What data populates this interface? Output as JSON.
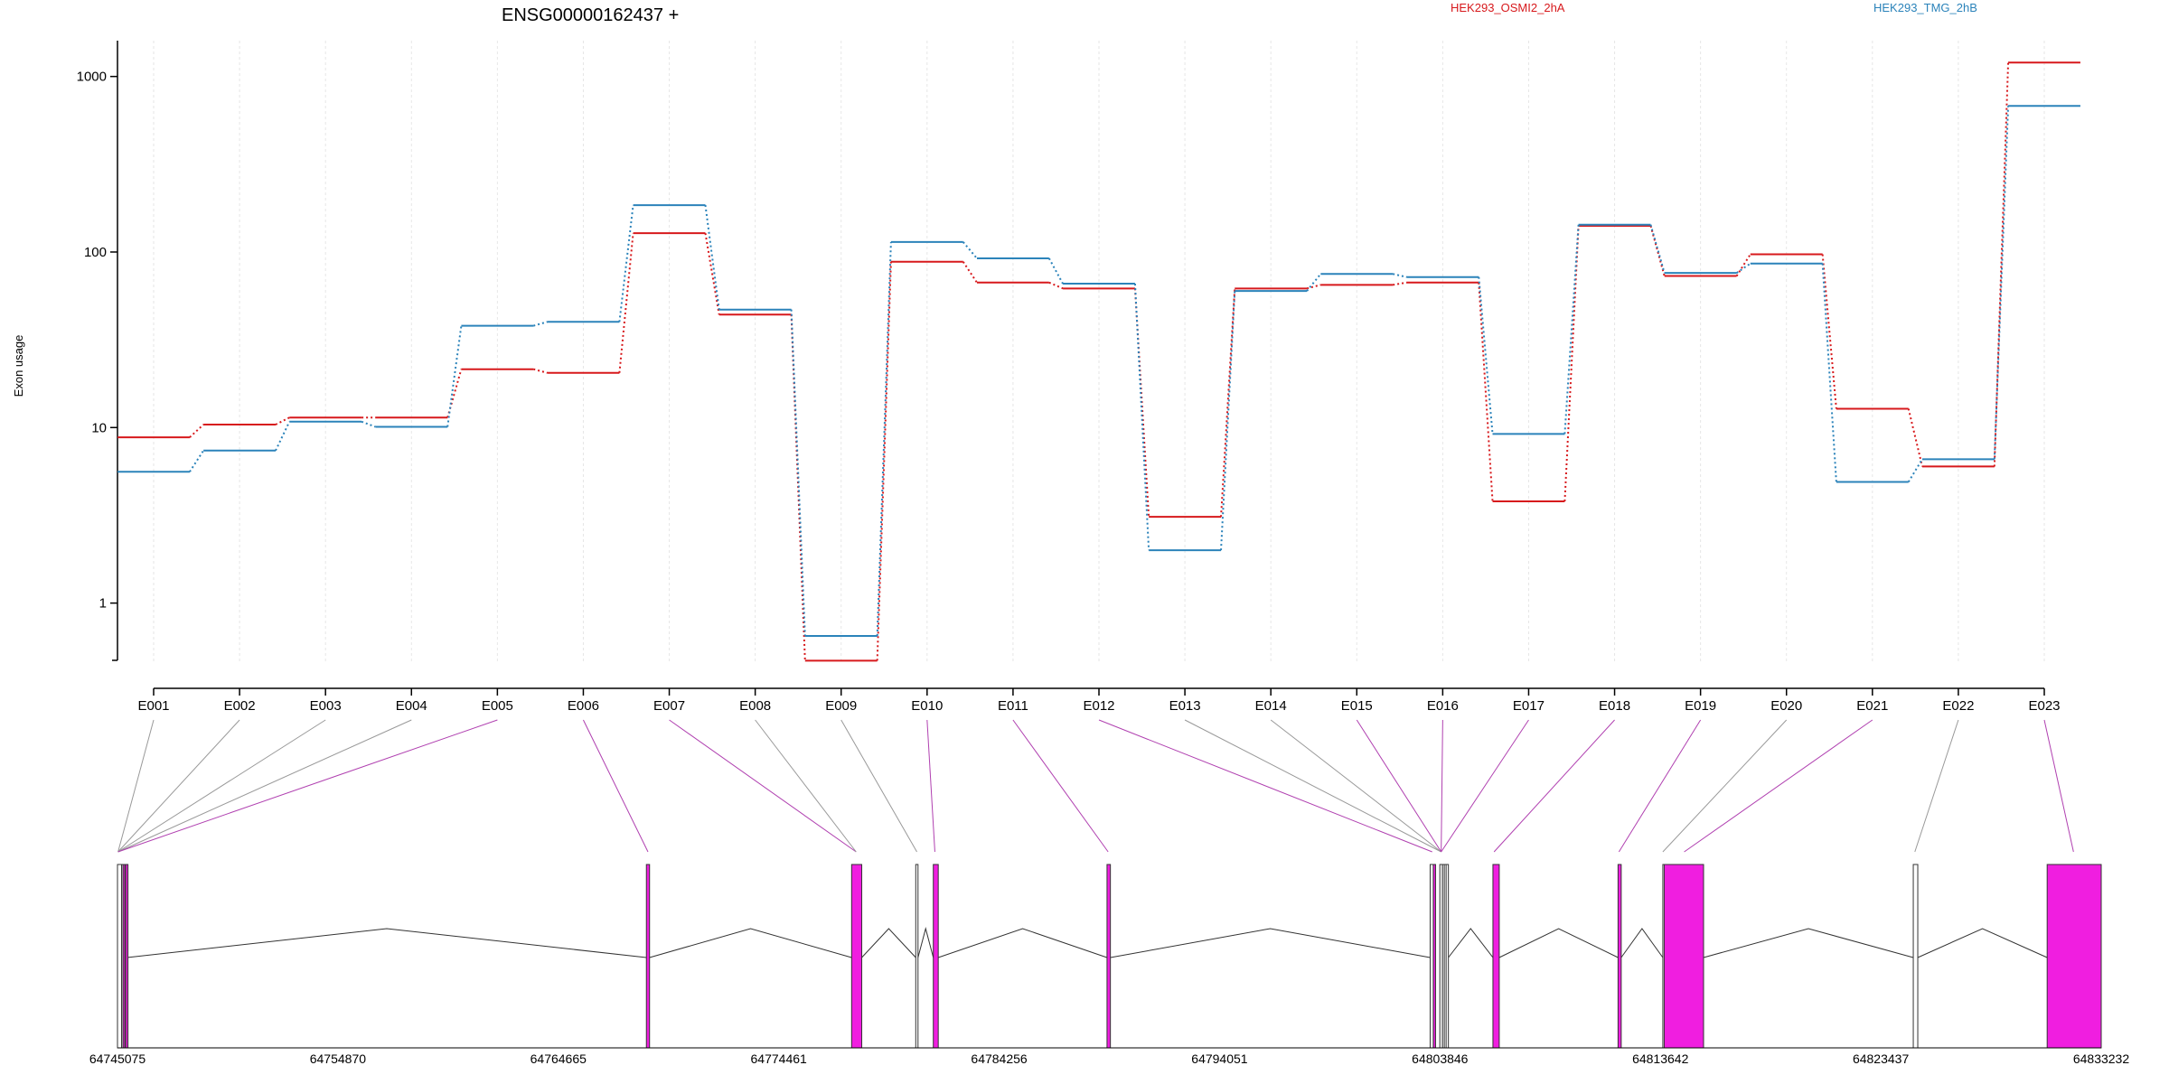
{
  "chart_data": {
    "type": "line",
    "title": "ENSG00000162437 +",
    "ylabel": "Exon usage",
    "xlabel": "",
    "y_scale": "log",
    "ylim": [
      0.45,
      1600
    ],
    "y_ticks": [
      1,
      10,
      100,
      1000
    ],
    "y_tick_labels": [
      "1",
      "10",
      "100",
      "1000"
    ],
    "categories": [
      "E001",
      "E002",
      "E003",
      "E004",
      "E005",
      "E006",
      "E007",
      "E008",
      "E009",
      "E010",
      "E011",
      "E012",
      "E013",
      "E014",
      "E015",
      "E016",
      "E017",
      "E018",
      "E019",
      "E020",
      "E021",
      "E022",
      "E023"
    ],
    "series": [
      {
        "name": "HEK293_OSMI2_2hA",
        "color": "#d7191c",
        "values": [
          8.8,
          10.4,
          11.4,
          11.4,
          21.5,
          20.5,
          128,
          44,
          0.47,
          88,
          67,
          62,
          3.1,
          62,
          65,
          67,
          3.8,
          141,
          73,
          97,
          12.8,
          6.0,
          1200
        ]
      },
      {
        "name": "HEK293_TMG_2hB",
        "color": "#2b83ba",
        "values": [
          5.6,
          7.4,
          10.8,
          10.1,
          38,
          40,
          185,
          47,
          0.65,
          114,
          92,
          66,
          2.0,
          60,
          75,
          72,
          9.2,
          143,
          76,
          86,
          4.9,
          6.6,
          680
        ]
      }
    ],
    "gene_model": {
      "x_tick_labels": [
        "64745075",
        "64754870",
        "64764665",
        "64774461",
        "64784256",
        "64794051",
        "64803846",
        "64813642",
        "64823437",
        "64833232"
      ],
      "exon_color": "#f01ee0",
      "connector_color_significant": "#b040b0",
      "connector_color_other": "#999999",
      "exons": [
        {
          "start": 64745075,
          "end": 64745260,
          "sig": false
        },
        {
          "start": 64745260,
          "end": 64745320,
          "sig": false
        },
        {
          "start": 64745320,
          "end": 64745400,
          "sig": true
        },
        {
          "start": 64745400,
          "end": 64745440,
          "sig": false
        },
        {
          "start": 64745440,
          "end": 64745500,
          "sig": true
        },
        {
          "start": 64768580,
          "end": 64768720,
          "sig": true
        },
        {
          "start": 64777700,
          "end": 64778150,
          "sig": true
        },
        {
          "start": 64780550,
          "end": 64780650,
          "sig": false
        },
        {
          "start": 64781330,
          "end": 64781550,
          "sig": true
        },
        {
          "start": 64789050,
          "end": 64789200,
          "sig": true
        },
        {
          "start": 64803410,
          "end": 64803550,
          "sig": false
        },
        {
          "start": 64803550,
          "end": 64803640,
          "sig": true
        },
        {
          "start": 64803840,
          "end": 64803960,
          "sig": false
        },
        {
          "start": 64803960,
          "end": 64804040,
          "sig": false
        },
        {
          "start": 64804040,
          "end": 64804120,
          "sig": false
        },
        {
          "start": 64804120,
          "end": 64804220,
          "sig": false
        },
        {
          "start": 64806200,
          "end": 64806480,
          "sig": true
        },
        {
          "start": 64811760,
          "end": 64811900,
          "sig": true
        },
        {
          "start": 64813750,
          "end": 64813810,
          "sig": false
        },
        {
          "start": 64813810,
          "end": 64815560,
          "sig": true
        },
        {
          "start": 64824880,
          "end": 64825080,
          "sig": false
        },
        {
          "start": 64830830,
          "end": 64833232,
          "sig": true
        }
      ],
      "links": [
        {
          "g": 64745100,
          "sig": false
        },
        {
          "g": 64745100,
          "sig": false
        },
        {
          "g": 64745100,
          "sig": false
        },
        {
          "g": 64745100,
          "sig": false
        },
        {
          "g": 64745100,
          "sig": true
        },
        {
          "g": 64768650,
          "sig": true
        },
        {
          "g": 64777900,
          "sig": true
        },
        {
          "g": 64777900,
          "sig": false
        },
        {
          "g": 64780600,
          "sig": false
        },
        {
          "g": 64781400,
          "sig": true
        },
        {
          "g": 64789100,
          "sig": true
        },
        {
          "g": 64803500,
          "sig": true
        },
        {
          "g": 64803900,
          "sig": false
        },
        {
          "g": 64803900,
          "sig": false
        },
        {
          "g": 64803900,
          "sig": true
        },
        {
          "g": 64803900,
          "sig": true
        },
        {
          "g": 64803900,
          "sig": true
        },
        {
          "g": 64806250,
          "sig": true
        },
        {
          "g": 64811800,
          "sig": true
        },
        {
          "g": 64813750,
          "sig": false
        },
        {
          "g": 64814700,
          "sig": true
        },
        {
          "g": 64824950,
          "sig": false
        },
        {
          "g": 64832000,
          "sig": true
        }
      ]
    }
  }
}
